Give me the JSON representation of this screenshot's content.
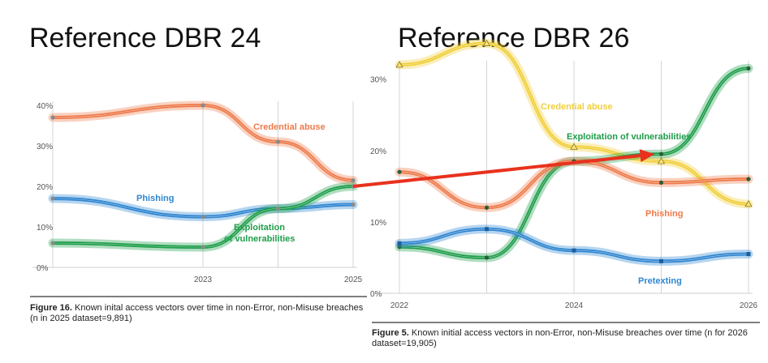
{
  "headings": {
    "left": "Reference DBR 24",
    "right": "Reference DBR 26"
  },
  "captions": {
    "left": {
      "label": "Figure 16.",
      "text": " Known inital access vectors over time in non-Error, non-Misuse breaches (n in 2025 dataset=9,891)"
    },
    "right": {
      "label": "Figure 5.",
      "text": " Known initial access vectors in non-Error, non-Misuse breaches over time (n for 2026 dataset=19,905)"
    }
  },
  "colors": {
    "orange": "#ee7a4a",
    "blue": "#2f86d1",
    "green": "#1e9e4a",
    "yellow": "#f1cf3a",
    "arrow": "#e8321e"
  },
  "chart_data": [
    {
      "type": "line",
      "xlim": [
        2021,
        2025
      ],
      "ylim": [
        0,
        40
      ],
      "yticks": [
        "0%",
        "10%",
        "20%",
        "30%",
        "40%"
      ],
      "yticks_values": [
        0,
        10,
        20,
        30,
        40
      ],
      "xticks": [
        "2023",
        "2025"
      ],
      "xticks_values": [
        2023,
        2025
      ],
      "series": [
        {
          "name": "Credential abuse",
          "color": "orange",
          "x": [
            2021,
            2023,
            2024,
            2025
          ],
          "values": [
            37,
            40,
            31,
            21.5
          ]
        },
        {
          "name": "Phishing",
          "color": "blue",
          "x": [
            2021,
            2023,
            2024,
            2025
          ],
          "values": [
            17,
            12.5,
            14.5,
            15.5
          ]
        },
        {
          "name": "Exploitation of vulnerabilities",
          "label_lines": [
            "Exploitation",
            "of vulnerabilities"
          ],
          "color": "green",
          "x": [
            2021,
            2023,
            2024,
            2025
          ],
          "values": [
            6,
            5,
            14.5,
            20
          ]
        }
      ]
    },
    {
      "type": "line",
      "xlim": [
        2022,
        2026
      ],
      "ylim": [
        0,
        32
      ],
      "yticks": [
        "0%",
        "10%",
        "20%",
        "30%"
      ],
      "yticks_values": [
        0,
        10,
        20,
        30
      ],
      "xticks": [
        "2022",
        "2024",
        "2026"
      ],
      "xticks_values": [
        2022,
        2024,
        2026
      ],
      "series": [
        {
          "name": "Credential abuse",
          "color": "yellow",
          "x": [
            2022,
            2023,
            2024,
            2025,
            2026
          ],
          "values": [
            32,
            35,
            20.5,
            18.5,
            12.5
          ]
        },
        {
          "name": "Exploitation of vulnerabilities",
          "color": "green",
          "x": [
            2022,
            2023,
            2024,
            2025,
            2026
          ],
          "values": [
            6.5,
            5,
            18.5,
            19.5,
            31.5
          ]
        },
        {
          "name": "Phishing",
          "color": "orange",
          "x": [
            2022,
            2023,
            2024,
            2025,
            2026
          ],
          "values": [
            17,
            12,
            18.5,
            15.5,
            16
          ]
        },
        {
          "name": "Pretexting",
          "color": "blue",
          "x": [
            2022,
            2023,
            2024,
            2025,
            2026
          ],
          "values": [
            7,
            9,
            6,
            4.5,
            5.5
          ]
        }
      ]
    }
  ]
}
